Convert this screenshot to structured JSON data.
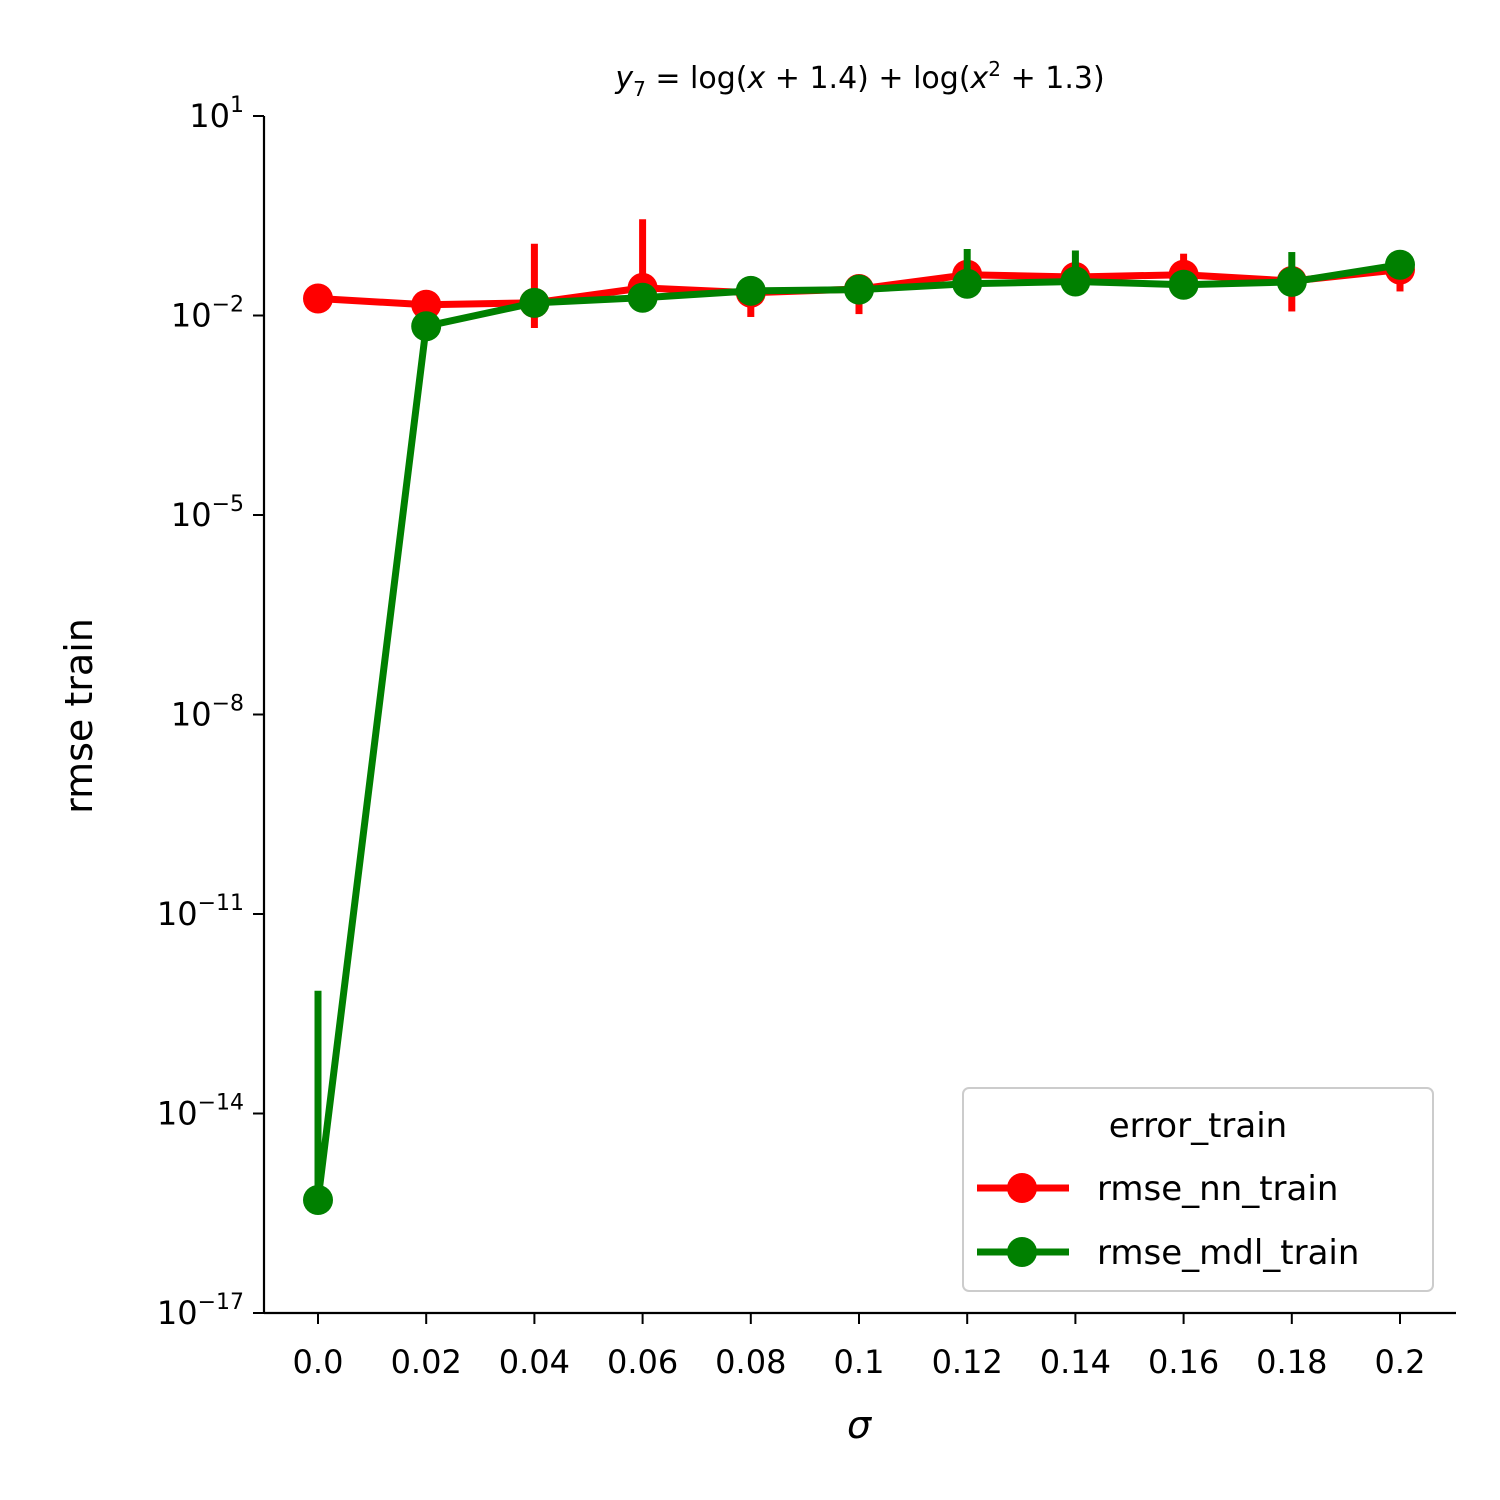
{
  "chart_data": {
    "type": "line",
    "title": "y_7 = log(x + 1.4) + log(x^2 + 1.3)",
    "title_parts": {
      "y": "y",
      "sub": "7",
      "eq": " = log(",
      "x1": "x",
      "mid": " + 1.4) + log(",
      "x2": "x",
      "sup": "2",
      "end": " + 1.3)"
    },
    "xlabel": "σ",
    "ylabel": "rmse train",
    "yscale": "log",
    "categories": [
      "0.0",
      "0.02",
      "0.04",
      "0.06",
      "0.08",
      "0.1",
      "0.12",
      "0.14",
      "0.16",
      "0.18",
      "0.2"
    ],
    "ylim": [
      1e-17,
      10
    ],
    "yticks": [
      {
        "value": 10.0,
        "base": "10",
        "exp": "1"
      },
      {
        "value": 0.01,
        "base": "10",
        "exp": "−2"
      },
      {
        "value": 1e-05,
        "base": "10",
        "exp": "−5"
      },
      {
        "value": 1e-08,
        "base": "10",
        "exp": "−8"
      },
      {
        "value": 1e-11,
        "base": "10",
        "exp": "−11"
      },
      {
        "value": 1e-14,
        "base": "10",
        "exp": "−14"
      },
      {
        "value": 1e-17,
        "base": "10",
        "exp": "−17"
      }
    ],
    "legend": {
      "title": "error_train",
      "position": "lower-right"
    },
    "series": [
      {
        "name": "rmse_nn_train",
        "color": "#ff0000",
        "values": [
          0.018,
          0.0145,
          0.0155,
          0.026,
          0.022,
          0.025,
          0.041,
          0.038,
          0.041,
          0.033,
          0.049
        ],
        "err_low": [
          null,
          null,
          0.0065,
          null,
          0.0095,
          0.0105,
          null,
          null,
          null,
          0.0115,
          0.023
        ],
        "err_high": [
          null,
          null,
          0.12,
          0.28,
          null,
          null,
          null,
          null,
          0.085,
          null,
          null
        ]
      },
      {
        "name": "rmse_mdl_train",
        "color": "#008000",
        "values": [
          5e-16,
          0.0069,
          0.0155,
          0.0185,
          0.0235,
          0.0245,
          0.03,
          0.0325,
          0.029,
          0.032,
          0.058
        ],
        "err_low": [
          null,
          null,
          null,
          null,
          null,
          null,
          null,
          null,
          null,
          null,
          null
        ],
        "err_high": [
          7e-13,
          null,
          null,
          null,
          null,
          null,
          0.1,
          0.095,
          null,
          0.09,
          null
        ]
      }
    ]
  }
}
